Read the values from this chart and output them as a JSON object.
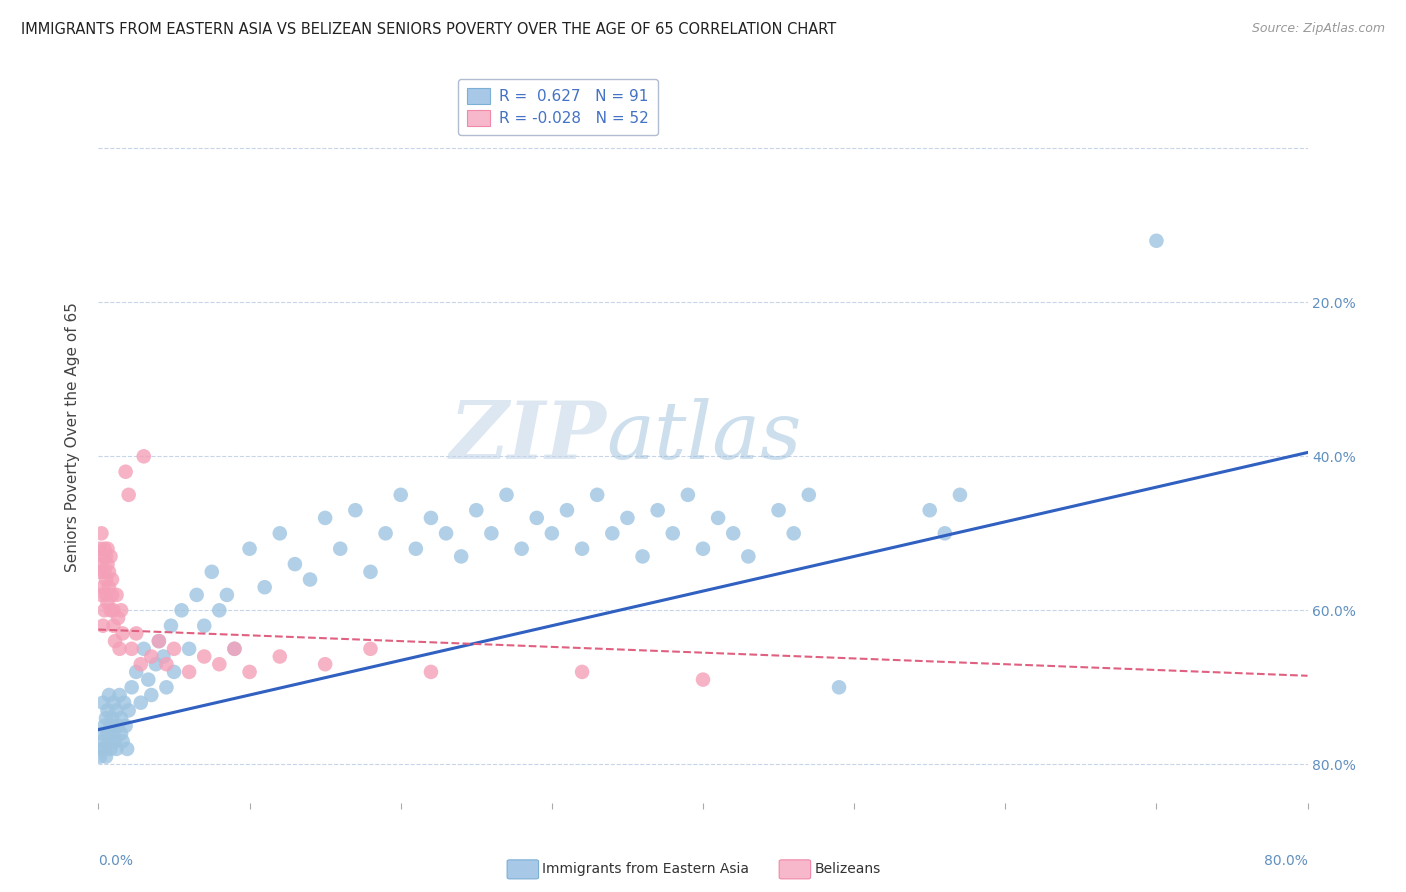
{
  "title": "IMMIGRANTS FROM EASTERN ASIA VS BELIZEAN SENIORS POVERTY OVER THE AGE OF 65 CORRELATION CHART",
  "source": "Source: ZipAtlas.com",
  "ylabel": "Seniors Poverty Over the Age of 65",
  "xlim": [
    0.0,
    0.8
  ],
  "ylim": [
    -0.05,
    0.9
  ],
  "yticks": [
    0.0,
    0.2,
    0.4,
    0.6,
    0.8
  ],
  "right_ytick_labels": [
    "80.0%",
    "60.0%",
    "40.0%",
    "20.0%",
    ""
  ],
  "series1_name": "Immigrants from Eastern Asia",
  "series2_name": "Belizeans",
  "series1_color": "#9ec4e0",
  "series2_color": "#f4a0b8",
  "series1_line_color": "#3060c0",
  "series2_line_color": "#e06080",
  "watermark_zip": "ZIP",
  "watermark_atlas": "atlas",
  "background_color": "#ffffff",
  "grid_color": "#c8d4e8",
  "title_color": "#222222",
  "axis_label_color": "#444444",
  "tick_color": "#6090c0",
  "series1_points": [
    [
      0.001,
      0.01
    ],
    [
      0.002,
      0.02
    ],
    [
      0.002,
      0.04
    ],
    [
      0.003,
      0.03
    ],
    [
      0.003,
      0.08
    ],
    [
      0.004,
      0.05
    ],
    [
      0.004,
      0.02
    ],
    [
      0.005,
      0.06
    ],
    [
      0.005,
      0.01
    ],
    [
      0.006,
      0.04
    ],
    [
      0.006,
      0.07
    ],
    [
      0.007,
      0.03
    ],
    [
      0.007,
      0.09
    ],
    [
      0.008,
      0.05
    ],
    [
      0.008,
      0.02
    ],
    [
      0.009,
      0.06
    ],
    [
      0.01,
      0.04
    ],
    [
      0.01,
      0.08
    ],
    [
      0.011,
      0.03
    ],
    [
      0.012,
      0.07
    ],
    [
      0.012,
      0.02
    ],
    [
      0.013,
      0.05
    ],
    [
      0.014,
      0.09
    ],
    [
      0.015,
      0.04
    ],
    [
      0.015,
      0.06
    ],
    [
      0.016,
      0.03
    ],
    [
      0.017,
      0.08
    ],
    [
      0.018,
      0.05
    ],
    [
      0.019,
      0.02
    ],
    [
      0.02,
      0.07
    ],
    [
      0.022,
      0.1
    ],
    [
      0.025,
      0.12
    ],
    [
      0.028,
      0.08
    ],
    [
      0.03,
      0.15
    ],
    [
      0.033,
      0.11
    ],
    [
      0.035,
      0.09
    ],
    [
      0.038,
      0.13
    ],
    [
      0.04,
      0.16
    ],
    [
      0.043,
      0.14
    ],
    [
      0.045,
      0.1
    ],
    [
      0.048,
      0.18
    ],
    [
      0.05,
      0.12
    ],
    [
      0.055,
      0.2
    ],
    [
      0.06,
      0.15
    ],
    [
      0.065,
      0.22
    ],
    [
      0.07,
      0.18
    ],
    [
      0.075,
      0.25
    ],
    [
      0.08,
      0.2
    ],
    [
      0.085,
      0.22
    ],
    [
      0.09,
      0.15
    ],
    [
      0.1,
      0.28
    ],
    [
      0.11,
      0.23
    ],
    [
      0.12,
      0.3
    ],
    [
      0.13,
      0.26
    ],
    [
      0.14,
      0.24
    ],
    [
      0.15,
      0.32
    ],
    [
      0.16,
      0.28
    ],
    [
      0.17,
      0.33
    ],
    [
      0.18,
      0.25
    ],
    [
      0.19,
      0.3
    ],
    [
      0.2,
      0.35
    ],
    [
      0.21,
      0.28
    ],
    [
      0.22,
      0.32
    ],
    [
      0.23,
      0.3
    ],
    [
      0.24,
      0.27
    ],
    [
      0.25,
      0.33
    ],
    [
      0.26,
      0.3
    ],
    [
      0.27,
      0.35
    ],
    [
      0.28,
      0.28
    ],
    [
      0.29,
      0.32
    ],
    [
      0.3,
      0.3
    ],
    [
      0.31,
      0.33
    ],
    [
      0.32,
      0.28
    ],
    [
      0.33,
      0.35
    ],
    [
      0.34,
      0.3
    ],
    [
      0.35,
      0.32
    ],
    [
      0.36,
      0.27
    ],
    [
      0.37,
      0.33
    ],
    [
      0.38,
      0.3
    ],
    [
      0.39,
      0.35
    ],
    [
      0.4,
      0.28
    ],
    [
      0.41,
      0.32
    ],
    [
      0.42,
      0.3
    ],
    [
      0.43,
      0.27
    ],
    [
      0.45,
      0.33
    ],
    [
      0.46,
      0.3
    ],
    [
      0.47,
      0.35
    ],
    [
      0.49,
      0.1
    ],
    [
      0.55,
      0.33
    ],
    [
      0.56,
      0.3
    ],
    [
      0.57,
      0.35
    ],
    [
      0.7,
      0.68
    ]
  ],
  "series2_points": [
    [
      0.001,
      0.25
    ],
    [
      0.001,
      0.28
    ],
    [
      0.002,
      0.22
    ],
    [
      0.002,
      0.3
    ],
    [
      0.002,
      0.26
    ],
    [
      0.003,
      0.27
    ],
    [
      0.003,
      0.23
    ],
    [
      0.003,
      0.18
    ],
    [
      0.004,
      0.25
    ],
    [
      0.004,
      0.2
    ],
    [
      0.004,
      0.28
    ],
    [
      0.005,
      0.22
    ],
    [
      0.005,
      0.27
    ],
    [
      0.005,
      0.24
    ],
    [
      0.006,
      0.26
    ],
    [
      0.006,
      0.21
    ],
    [
      0.006,
      0.28
    ],
    [
      0.007,
      0.23
    ],
    [
      0.007,
      0.25
    ],
    [
      0.008,
      0.2
    ],
    [
      0.008,
      0.27
    ],
    [
      0.009,
      0.22
    ],
    [
      0.009,
      0.24
    ],
    [
      0.01,
      0.18
    ],
    [
      0.01,
      0.2
    ],
    [
      0.011,
      0.16
    ],
    [
      0.012,
      0.22
    ],
    [
      0.013,
      0.19
    ],
    [
      0.014,
      0.15
    ],
    [
      0.015,
      0.2
    ],
    [
      0.016,
      0.17
    ],
    [
      0.018,
      0.38
    ],
    [
      0.02,
      0.35
    ],
    [
      0.022,
      0.15
    ],
    [
      0.025,
      0.17
    ],
    [
      0.028,
      0.13
    ],
    [
      0.03,
      0.4
    ],
    [
      0.035,
      0.14
    ],
    [
      0.04,
      0.16
    ],
    [
      0.045,
      0.13
    ],
    [
      0.05,
      0.15
    ],
    [
      0.06,
      0.12
    ],
    [
      0.07,
      0.14
    ],
    [
      0.08,
      0.13
    ],
    [
      0.09,
      0.15
    ],
    [
      0.1,
      0.12
    ],
    [
      0.12,
      0.14
    ],
    [
      0.15,
      0.13
    ],
    [
      0.18,
      0.15
    ],
    [
      0.22,
      0.12
    ],
    [
      0.32,
      0.12
    ],
    [
      0.4,
      0.11
    ]
  ]
}
